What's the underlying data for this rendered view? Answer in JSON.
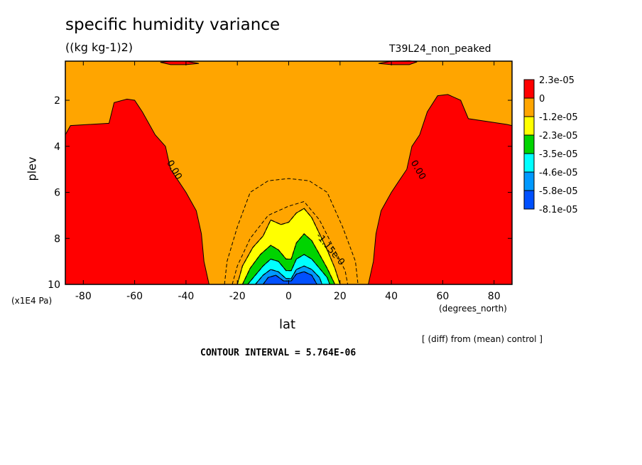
{
  "header": {
    "title": "specific humidity variance",
    "units": "((kg kg-1)2)",
    "run_label": "T39L24_non_peaked"
  },
  "footer": {
    "diff_note": "[ (diff) from (mean) control ]",
    "contour_interval": "CONTOUR INTERVAL = 5.764E-06"
  },
  "chart_data": {
    "type": "heatmap",
    "xlabel": "lat",
    "ylabel": "plev",
    "x_unit_label": "(degrees_north)",
    "y_unit_label": "(x1E4 Pa)",
    "xlim": [
      -87,
      87
    ],
    "ylim": [
      10,
      0.3
    ],
    "y_inverted": true,
    "x_ticks": [
      {
        "value": -80,
        "label": "-80"
      },
      {
        "value": -60,
        "label": "-60"
      },
      {
        "value": -40,
        "label": "-40"
      },
      {
        "value": -20,
        "label": "-20"
      },
      {
        "value": 0,
        "label": "0"
      },
      {
        "value": 20,
        "label": "20"
      },
      {
        "value": 40,
        "label": "40"
      },
      {
        "value": 60,
        "label": "60"
      },
      {
        "value": 80,
        "label": "80"
      }
    ],
    "y_ticks": [
      {
        "value": 2,
        "label": "2"
      },
      {
        "value": 4,
        "label": "4"
      },
      {
        "value": 6,
        "label": "6"
      },
      {
        "value": 8,
        "label": "8"
      },
      {
        "value": 10,
        "label": "10"
      }
    ],
    "contour_labels": [
      {
        "text": "0.00",
        "lat": -47.5,
        "plev": 4.7
      },
      {
        "text": "0.00",
        "lat": 47.5,
        "plev": 4.7
      },
      {
        "text": "-1.15e-0",
        "lat": 10.5,
        "plev": 7.9
      }
    ],
    "legend": {
      "placement": "right",
      "levels": [
        {
          "label": "2.3e-05",
          "color": "#ff0000"
        },
        {
          "label": "0",
          "color": "#ffa500"
        },
        {
          "label": "-1.2e-05",
          "color": "#ffff00"
        },
        {
          "label": "-2.3e-05",
          "color": "#00d400"
        },
        {
          "label": "-3.5e-05",
          "color": "#00ffff"
        },
        {
          "label": "-4.6e-05",
          "color": "#0099ff"
        },
        {
          "label": "-5.8e-05",
          "color": "#0050ff"
        },
        {
          "label": "-8.1e-05",
          "color": ""
        }
      ]
    },
    "regions": [
      {
        "name": "positive-region-south",
        "color": "#ff0000",
        "points": [
          [
            -87,
            10
          ],
          [
            -87,
            3.5
          ],
          [
            -85,
            3.1
          ],
          [
            -70,
            3.0
          ],
          [
            -68,
            2.1
          ],
          [
            -63,
            1.95
          ],
          [
            -60,
            2.0
          ],
          [
            -57,
            2.5
          ],
          [
            -52,
            3.5
          ],
          [
            -48,
            4.0
          ],
          [
            -46,
            5.0
          ],
          [
            -43,
            5.5
          ],
          [
            -40,
            6.0
          ],
          [
            -36,
            6.8
          ],
          [
            -34,
            7.8
          ],
          [
            -33,
            9.0
          ],
          [
            -31,
            10
          ]
        ]
      },
      {
        "name": "positive-region-north",
        "color": "#ff0000",
        "points": [
          [
            87,
            10
          ],
          [
            87,
            3.1
          ],
          [
            85,
            3.05
          ],
          [
            70,
            2.8
          ],
          [
            67,
            2.0
          ],
          [
            62,
            1.75
          ],
          [
            58,
            1.8
          ],
          [
            54,
            2.5
          ],
          [
            51,
            3.5
          ],
          [
            48,
            4.0
          ],
          [
            46,
            5.0
          ],
          [
            43,
            5.5
          ],
          [
            40,
            6.0
          ],
          [
            36,
            6.8
          ],
          [
            34,
            7.8
          ],
          [
            33,
            9.0
          ],
          [
            31,
            10
          ]
        ]
      },
      {
        "name": "negative-band-yellow",
        "color": "#ffff00",
        "points": [
          [
            -20,
            10
          ],
          [
            -18,
            9.2
          ],
          [
            -14,
            8.4
          ],
          [
            -10,
            7.9
          ],
          [
            -7,
            7.2
          ],
          [
            -3,
            7.4
          ],
          [
            0,
            7.3
          ],
          [
            3,
            6.9
          ],
          [
            6,
            6.7
          ],
          [
            9,
            7.1
          ],
          [
            12,
            7.8
          ],
          [
            15,
            8.5
          ],
          [
            18,
            9.3
          ],
          [
            20,
            10
          ]
        ]
      },
      {
        "name": "negative-band-green",
        "color": "#00d400",
        "points": [
          [
            -18,
            10
          ],
          [
            -15,
            9.3
          ],
          [
            -11,
            8.7
          ],
          [
            -7,
            8.3
          ],
          [
            -4,
            8.5
          ],
          [
            -1,
            8.9
          ],
          [
            1,
            8.9
          ],
          [
            3,
            8.2
          ],
          [
            6,
            7.8
          ],
          [
            9,
            8.1
          ],
          [
            12,
            8.7
          ],
          [
            15,
            9.3
          ],
          [
            18,
            10
          ]
        ]
      },
      {
        "name": "negative-band-cyan",
        "color": "#00ffff",
        "points": [
          [
            -16,
            10
          ],
          [
            -13,
            9.6
          ],
          [
            -10,
            9.2
          ],
          [
            -7,
            8.9
          ],
          [
            -4,
            9.0
          ],
          [
            -1,
            9.4
          ],
          [
            1,
            9.4
          ],
          [
            3,
            8.9
          ],
          [
            6,
            8.7
          ],
          [
            9,
            8.9
          ],
          [
            12,
            9.3
          ],
          [
            15,
            9.7
          ],
          [
            16,
            10
          ]
        ]
      },
      {
        "name": "negative-band-lightblue",
        "color": "#0099ff",
        "points": [
          [
            -13,
            10
          ],
          [
            -10,
            9.6
          ],
          [
            -7,
            9.35
          ],
          [
            -4,
            9.45
          ],
          [
            -1,
            9.75
          ],
          [
            1,
            9.75
          ],
          [
            3,
            9.35
          ],
          [
            6,
            9.2
          ],
          [
            9,
            9.35
          ],
          [
            12,
            9.7
          ],
          [
            13,
            10
          ]
        ]
      },
      {
        "name": "negative-band-blue",
        "color": "#0050ff",
        "points": [
          [
            -10,
            10
          ],
          [
            -8,
            9.7
          ],
          [
            -5,
            9.6
          ],
          [
            -2,
            9.85
          ],
          [
            1,
            9.85
          ],
          [
            3,
            9.55
          ],
          [
            6,
            9.45
          ],
          [
            9,
            9.6
          ],
          [
            11,
            10
          ]
        ]
      },
      {
        "name": "top-blob-south",
        "color": "#ff0000",
        "points": [
          [
            -50,
            0.35
          ],
          [
            -46,
            0.3
          ],
          [
            -40,
            0.3
          ],
          [
            -35,
            0.4
          ],
          [
            -40,
            0.45
          ],
          [
            -46,
            0.45
          ]
        ]
      },
      {
        "name": "top-blob-north",
        "color": "#ff0000",
        "points": [
          [
            35,
            0.4
          ],
          [
            40,
            0.3
          ],
          [
            47,
            0.28
          ],
          [
            50,
            0.33
          ],
          [
            47,
            0.45
          ],
          [
            40,
            0.45
          ]
        ]
      }
    ],
    "dashed_contours": [
      {
        "name": "contour-outer-dashed",
        "points": [
          [
            -25,
            10
          ],
          [
            -24,
            9.0
          ],
          [
            -20,
            7.5
          ],
          [
            -15,
            6.0
          ],
          [
            -8,
            5.5
          ],
          [
            0,
            5.4
          ],
          [
            8,
            5.5
          ],
          [
            15,
            6.0
          ],
          [
            21,
            7.5
          ],
          [
            26,
            9.0
          ],
          [
            27,
            10
          ]
        ]
      },
      {
        "name": "contour-mid-dashed",
        "points": [
          [
            -22,
            10
          ],
          [
            -20,
            9.2
          ],
          [
            -15,
            8.0
          ],
          [
            -8,
            7.0
          ],
          [
            0,
            6.6
          ],
          [
            6,
            6.4
          ],
          [
            12,
            7.2
          ],
          [
            17,
            8.3
          ],
          [
            22,
            9.4
          ],
          [
            23,
            10
          ]
        ]
      }
    ]
  }
}
